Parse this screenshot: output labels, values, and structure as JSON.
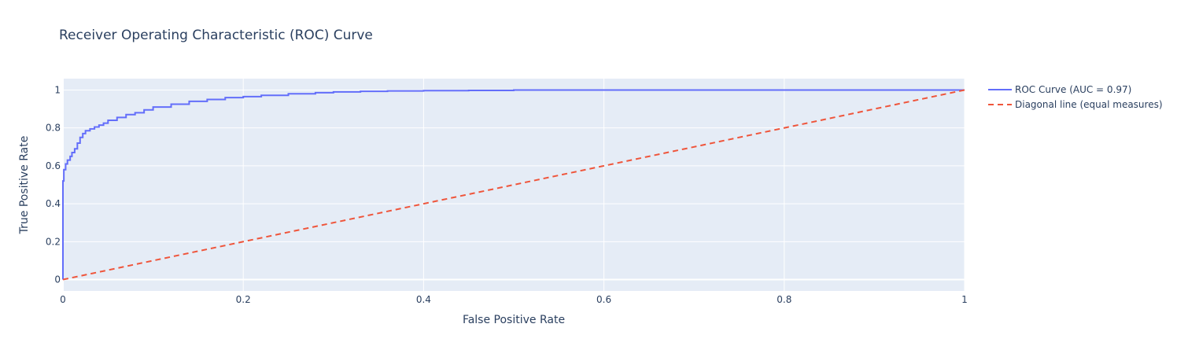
{
  "chart_data": {
    "type": "line",
    "title": "Receiver Operating Characteristic (ROC) Curve",
    "xlabel": "False Positive Rate",
    "ylabel": "True Positive Rate",
    "xlim": [
      0,
      1
    ],
    "ylim": [
      -0.06,
      1.06
    ],
    "grid": true,
    "legend_position": "right",
    "x_ticks": [
      "0",
      "0.2",
      "0.4",
      "0.6",
      "0.8",
      "1"
    ],
    "y_ticks": [
      "0",
      "0.2",
      "0.4",
      "0.6",
      "0.8",
      "1"
    ],
    "series": [
      {
        "name": "ROC Curve (AUC = 0.97)",
        "color": "#636efa",
        "dash": "solid",
        "x": [
          0,
          0,
          0.001,
          0.003,
          0.005,
          0.008,
          0.01,
          0.013,
          0.016,
          0.019,
          0.022,
          0.025,
          0.03,
          0.035,
          0.04,
          0.045,
          0.05,
          0.06,
          0.07,
          0.08,
          0.09,
          0.1,
          0.12,
          0.14,
          0.16,
          0.18,
          0.2,
          0.22,
          0.25,
          0.28,
          0.3,
          0.33,
          0.36,
          0.4,
          0.45,
          0.5,
          1
        ],
        "y": [
          0,
          0.52,
          0.58,
          0.61,
          0.63,
          0.65,
          0.67,
          0.69,
          0.72,
          0.75,
          0.77,
          0.785,
          0.795,
          0.805,
          0.815,
          0.825,
          0.84,
          0.855,
          0.87,
          0.88,
          0.895,
          0.91,
          0.925,
          0.94,
          0.95,
          0.96,
          0.965,
          0.972,
          0.98,
          0.986,
          0.99,
          0.993,
          0.995,
          0.997,
          0.998,
          1.0,
          1.0
        ]
      },
      {
        "name": "Diagonal line (equal measures)",
        "color": "#ef553b",
        "dash": "dash",
        "x": [
          0,
          1
        ],
        "y": [
          0,
          1
        ]
      }
    ]
  }
}
